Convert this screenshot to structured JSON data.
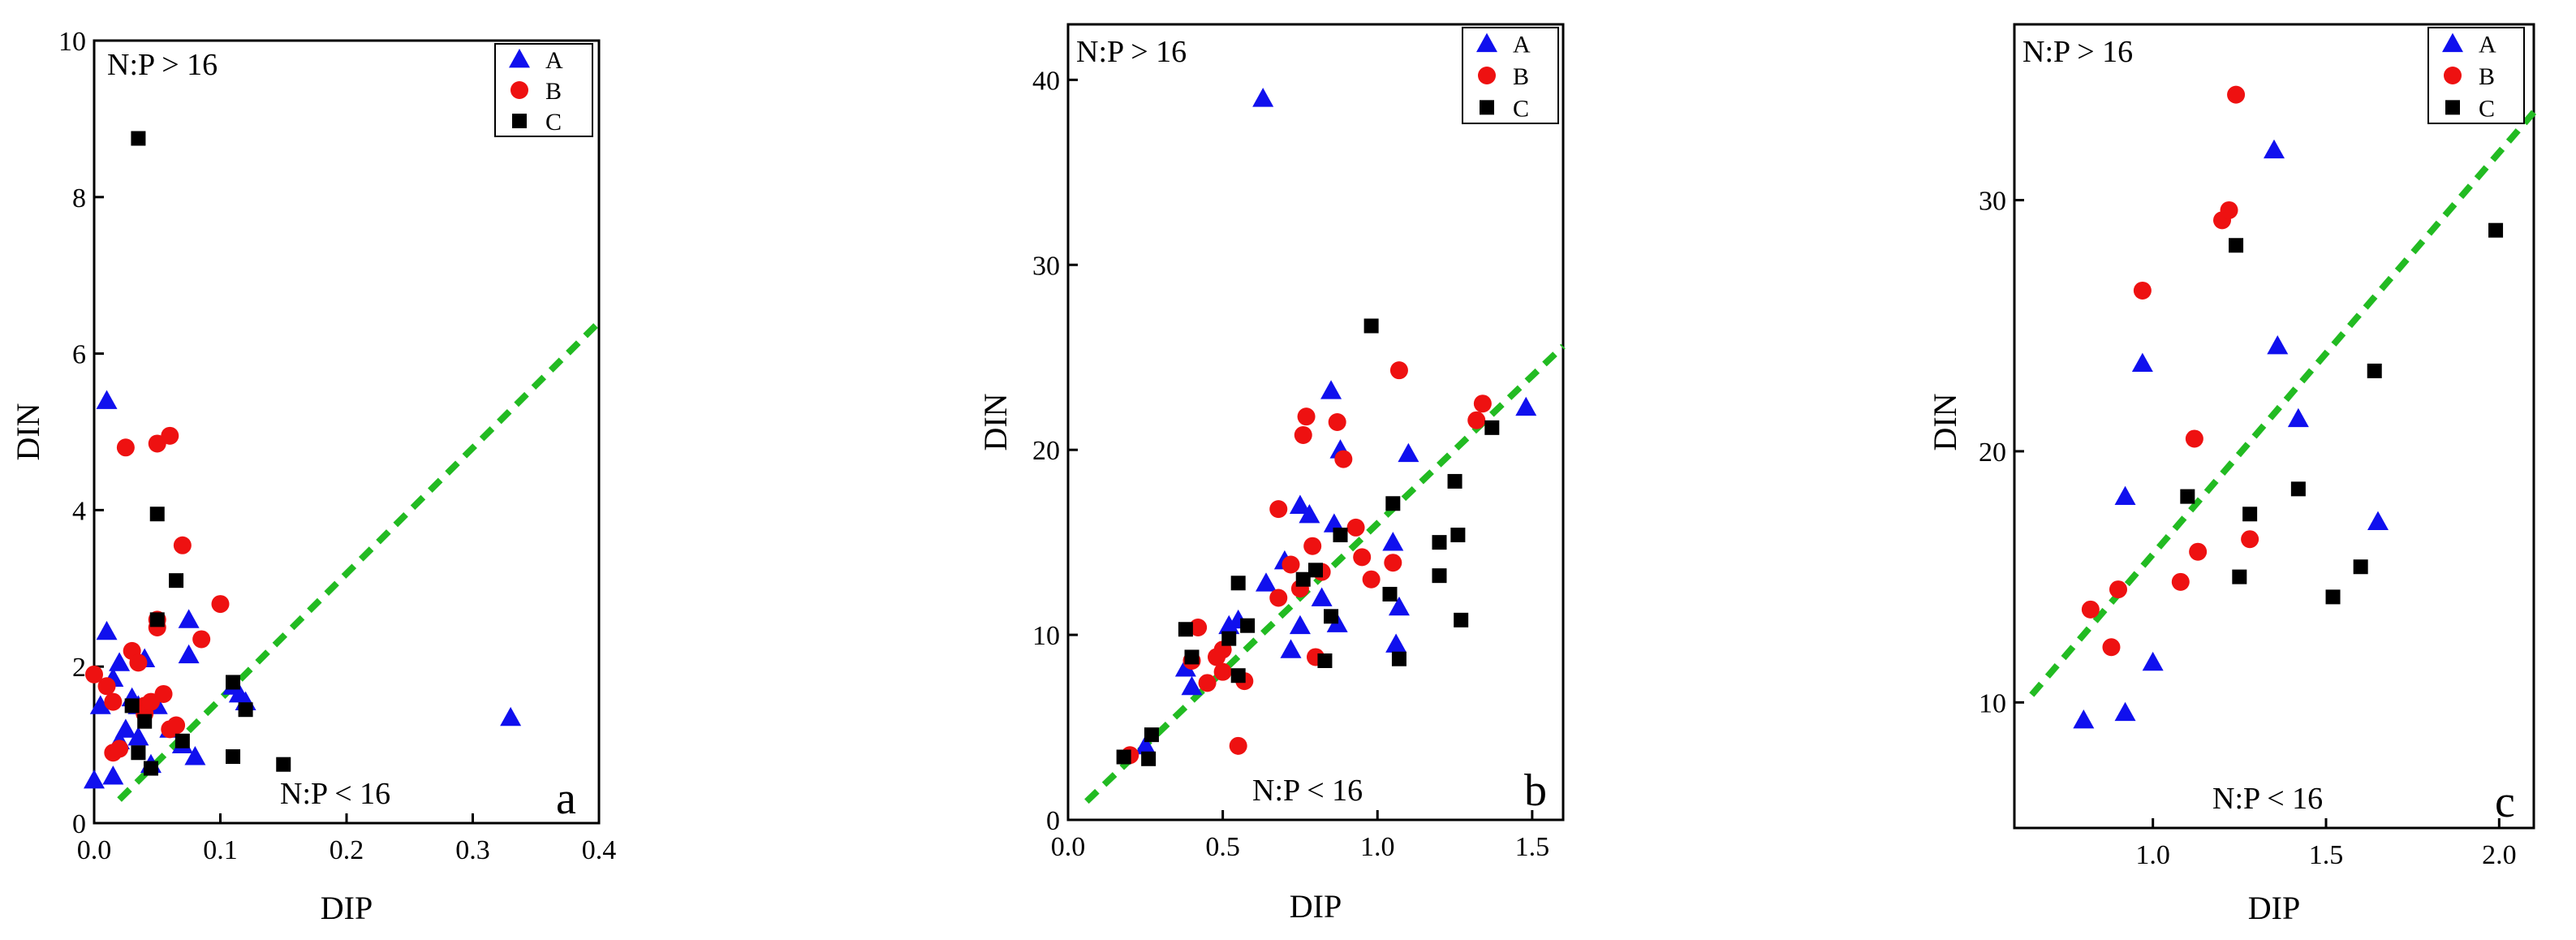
{
  "colors": {
    "A": "#1010ee",
    "B": "#ee1111",
    "C": "#000000",
    "fit": "#22bb22"
  },
  "chart_data": [
    {
      "type": "scatter",
      "panel_label": "a",
      "xlabel": "DIP",
      "ylabel": "DIN",
      "xlim": [
        0,
        0.4
      ],
      "ylim": [
        0,
        10
      ],
      "xticks": [
        0.0,
        0.1,
        0.2,
        0.3,
        0.4
      ],
      "xtick_labels": [
        "0.0",
        "0.1",
        "0.2",
        "0.3",
        "0.4"
      ],
      "yticks": [
        0,
        2,
        4,
        6,
        8,
        10
      ],
      "ytick_labels": [
        "0",
        "2",
        "4",
        "6",
        "8",
        "10"
      ],
      "annotations": [
        "N:P > 16",
        "N:P < 16"
      ],
      "legend_position": "top-right",
      "ref_line": {
        "label": "N:P = 16",
        "x": [
          0.02,
          0.4
        ],
        "y": [
          0.3,
          6.4
        ]
      },
      "series": [
        {
          "name": "A",
          "marker": "triangle",
          "points": [
            [
              0.0,
              0.55
            ],
            [
              0.01,
              5.4
            ],
            [
              0.01,
              2.45
            ],
            [
              0.005,
              1.5
            ],
            [
              0.015,
              1.85
            ],
            [
              0.02,
              2.05
            ],
            [
              0.02,
              1.05
            ],
            [
              0.015,
              0.6
            ],
            [
              0.025,
              1.2
            ],
            [
              0.03,
              1.6
            ],
            [
              0.035,
              1.1
            ],
            [
              0.04,
              2.1
            ],
            [
              0.035,
              1.5
            ],
            [
              0.045,
              0.75
            ],
            [
              0.05,
              1.5
            ],
            [
              0.06,
              1.2
            ],
            [
              0.07,
              1.0
            ],
            [
              0.075,
              2.6
            ],
            [
              0.075,
              2.15
            ],
            [
              0.08,
              0.85
            ],
            [
              0.11,
              1.75
            ],
            [
              0.115,
              1.65
            ],
            [
              0.12,
              1.55
            ],
            [
              0.33,
              1.35
            ]
          ]
        },
        {
          "name": "B",
          "marker": "circle",
          "points": [
            [
              0.0,
              1.9
            ],
            [
              0.01,
              1.75
            ],
            [
              0.015,
              1.55
            ],
            [
              0.015,
              0.9
            ],
            [
              0.02,
              0.95
            ],
            [
              0.025,
              4.8
            ],
            [
              0.03,
              2.2
            ],
            [
              0.035,
              2.05
            ],
            [
              0.04,
              1.5
            ],
            [
              0.04,
              1.4
            ],
            [
              0.045,
              1.55
            ],
            [
              0.05,
              2.5
            ],
            [
              0.05,
              2.6
            ],
            [
              0.05,
              4.85
            ],
            [
              0.055,
              1.65
            ],
            [
              0.06,
              4.95
            ],
            [
              0.06,
              1.2
            ],
            [
              0.065,
              1.25
            ],
            [
              0.07,
              3.55
            ],
            [
              0.085,
              2.35
            ],
            [
              0.1,
              2.8
            ]
          ]
        },
        {
          "name": "C",
          "marker": "square",
          "points": [
            [
              0.035,
              8.75
            ],
            [
              0.05,
              3.95
            ],
            [
              0.065,
              3.1
            ],
            [
              0.05,
              2.6
            ],
            [
              0.03,
              1.5
            ],
            [
              0.04,
              1.3
            ],
            [
              0.035,
              0.9
            ],
            [
              0.045,
              0.7
            ],
            [
              0.07,
              1.05
            ],
            [
              0.11,
              0.85
            ],
            [
              0.11,
              1.8
            ],
            [
              0.12,
              1.45
            ],
            [
              0.15,
              0.75
            ]
          ]
        }
      ]
    },
    {
      "type": "scatter",
      "panel_label": "b",
      "xlabel": "DIP",
      "ylabel": "DIN",
      "xlim": [
        0,
        1.6
      ],
      "ylim": [
        0,
        43
      ],
      "xticks": [
        0.0,
        0.5,
        1.0,
        1.5
      ],
      "xtick_labels": [
        "0.0",
        "0.5",
        "1.0",
        "1.5"
      ],
      "yticks": [
        0,
        10,
        20,
        30,
        40
      ],
      "ytick_labels": [
        "0",
        "10",
        "20",
        "30",
        "40"
      ],
      "annotations": [
        "N:P > 16",
        "N:P < 16"
      ],
      "legend_position": "top-right",
      "ref_line": {
        "label": "N:P = 16",
        "x": [
          0.06,
          1.6
        ],
        "y": [
          1.0,
          25.6
        ]
      },
      "series": [
        {
          "name": "A",
          "marker": "triangle",
          "points": [
            [
              0.63,
              39.0
            ],
            [
              0.85,
              23.2
            ],
            [
              0.88,
              20.0
            ],
            [
              1.1,
              19.8
            ],
            [
              1.48,
              22.3
            ],
            [
              0.75,
              17.0
            ],
            [
              0.78,
              16.5
            ],
            [
              0.82,
              12.0
            ],
            [
              0.86,
              16.0
            ],
            [
              0.7,
              14.0
            ],
            [
              1.05,
              15.0
            ],
            [
              1.07,
              11.5
            ],
            [
              0.64,
              12.8
            ],
            [
              0.55,
              10.8
            ],
            [
              0.75,
              10.5
            ],
            [
              0.72,
              9.2
            ],
            [
              0.87,
              10.6
            ],
            [
              0.38,
              8.2
            ],
            [
              0.4,
              7.2
            ],
            [
              1.06,
              9.5
            ],
            [
              0.25,
              4.0
            ],
            [
              0.52,
              10.5
            ]
          ]
        },
        {
          "name": "B",
          "marker": "circle",
          "points": [
            [
              0.77,
              21.8
            ],
            [
              0.76,
              20.8
            ],
            [
              0.87,
              21.5
            ],
            [
              0.89,
              19.5
            ],
            [
              1.07,
              24.3
            ],
            [
              1.34,
              22.5
            ],
            [
              1.32,
              21.6
            ],
            [
              0.68,
              16.8
            ],
            [
              0.79,
              14.8
            ],
            [
              0.93,
              15.8
            ],
            [
              0.95,
              14.2
            ],
            [
              0.72,
              13.8
            ],
            [
              0.75,
              12.5
            ],
            [
              0.82,
              13.4
            ],
            [
              0.68,
              12.0
            ],
            [
              0.5,
              9.2
            ],
            [
              0.48,
              8.8
            ],
            [
              0.42,
              10.4
            ],
            [
              0.4,
              8.6
            ],
            [
              0.5,
              8.0
            ],
            [
              0.57,
              7.5
            ],
            [
              0.55,
              4.0
            ],
            [
              0.45,
              7.4
            ],
            [
              0.98,
              13.0
            ],
            [
              1.05,
              13.9
            ],
            [
              0.8,
              8.8
            ],
            [
              0.2,
              3.5
            ]
          ]
        },
        {
          "name": "C",
          "marker": "square",
          "points": [
            [
              0.98,
              26.7
            ],
            [
              1.25,
              18.3
            ],
            [
              1.05,
              17.1
            ],
            [
              1.2,
              15.0
            ],
            [
              1.26,
              15.4
            ],
            [
              1.2,
              13.2
            ],
            [
              1.27,
              10.8
            ],
            [
              1.04,
              12.2
            ],
            [
              1.07,
              8.7
            ],
            [
              1.37,
              21.2
            ],
            [
              0.88,
              15.4
            ],
            [
              0.76,
              13.0
            ],
            [
              0.8,
              13.5
            ],
            [
              0.85,
              11.0
            ],
            [
              0.83,
              8.6
            ],
            [
              0.55,
              12.8
            ],
            [
              0.58,
              10.5
            ],
            [
              0.55,
              7.8
            ],
            [
              0.52,
              9.8
            ],
            [
              0.38,
              10.3
            ],
            [
              0.4,
              8.8
            ],
            [
              0.27,
              4.6
            ],
            [
              0.26,
              3.3
            ],
            [
              0.18,
              3.4
            ]
          ]
        }
      ]
    },
    {
      "type": "scatter",
      "panel_label": "c",
      "xlabel": "DIP",
      "ylabel": "DIN",
      "xlim": [
        0.6,
        2.1
      ],
      "ylim": [
        5,
        37
      ],
      "xticks": [
        1.0,
        1.5,
        2.0
      ],
      "xtick_labels": [
        "1.0",
        "1.5",
        "2.0"
      ],
      "yticks": [
        10,
        20,
        30
      ],
      "ytick_labels": [
        "10",
        "20",
        "30"
      ],
      "annotations": [
        "N:P > 16",
        "N:P < 16"
      ],
      "legend_position": "top-right",
      "ref_line": {
        "label": "N:P = 16",
        "x": [
          0.65,
          2.1
        ],
        "y": [
          10.3,
          33.5
        ]
      },
      "series": [
        {
          "name": "A",
          "marker": "triangle",
          "points": [
            [
              0.8,
              9.3
            ],
            [
              0.92,
              9.6
            ],
            [
              0.92,
              18.2
            ],
            [
              0.97,
              23.5
            ],
            [
              1.0,
              11.6
            ],
            [
              1.35,
              32.0
            ],
            [
              1.36,
              24.2
            ],
            [
              1.42,
              21.3
            ],
            [
              1.65,
              17.2
            ]
          ]
        },
        {
          "name": "B",
          "marker": "circle",
          "points": [
            [
              0.82,
              13.7
            ],
            [
              0.88,
              12.2
            ],
            [
              0.9,
              14.5
            ],
            [
              0.97,
              26.4
            ],
            [
              1.08,
              14.8
            ],
            [
              1.12,
              20.5
            ],
            [
              1.13,
              16.0
            ],
            [
              1.2,
              29.2
            ],
            [
              1.22,
              29.6
            ],
            [
              1.24,
              34.2
            ],
            [
              1.28,
              16.5
            ]
          ]
        },
        {
          "name": "C",
          "marker": "square",
          "points": [
            [
              1.1,
              18.2
            ],
            [
              1.24,
              28.2
            ],
            [
              1.25,
              15.0
            ],
            [
              1.28,
              17.5
            ],
            [
              1.42,
              18.5
            ],
            [
              1.52,
              14.2
            ],
            [
              1.6,
              15.4
            ],
            [
              1.64,
              23.2
            ],
            [
              1.99,
              28.8
            ]
          ]
        }
      ]
    }
  ]
}
